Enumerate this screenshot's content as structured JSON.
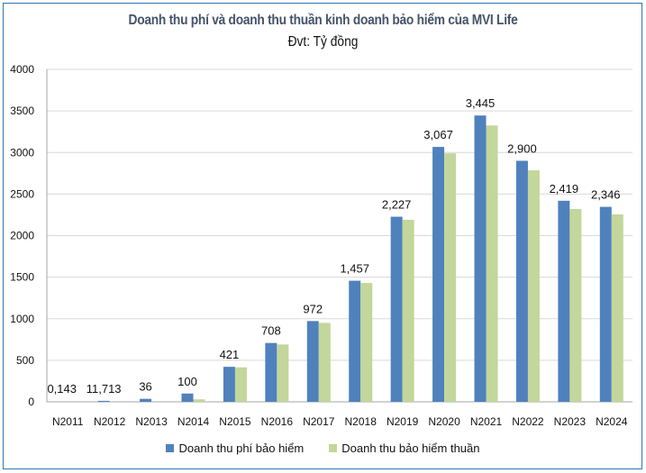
{
  "chart_data": {
    "type": "bar",
    "title": "Doanh thu phí và doanh thu thuần kinh doanh bảo hiểm của MVI Life",
    "subtitle": "Đvt: Tỷ đồng",
    "xlabel": "",
    "ylabel": "",
    "ylim": [
      0,
      4000
    ],
    "yticks": [
      0,
      500,
      1000,
      1500,
      2000,
      2500,
      3000,
      3500,
      4000
    ],
    "grid": true,
    "legend_position": "bottom",
    "categories": [
      "N2011",
      "N2012",
      "N2013",
      "N2014",
      "N2015",
      "N2016",
      "N2017",
      "N2018",
      "N2019",
      "N2020",
      "N2021",
      "N2022",
      "N2023",
      "N2024"
    ],
    "series": [
      {
        "name": "Doanh thu  phí bảo hiểm",
        "color": "#4f81bd",
        "values": [
          0.143,
          11.713,
          36,
          100,
          421,
          708,
          972,
          1457,
          2227,
          3067,
          3445,
          2900,
          2419,
          2346
        ],
        "labels": [
          "0,143",
          "11,713",
          "36",
          "100",
          "421",
          "708",
          "972",
          "1,457",
          "2,227",
          "3,067",
          "3,445",
          "2,900",
          "2,419",
          "2,346"
        ]
      },
      {
        "name": "Doanh thu  bảo hiểm thuần",
        "color": "#c3d69b",
        "values": [
          0,
          0,
          0,
          30,
          415,
          690,
          950,
          1430,
          2190,
          2990,
          3325,
          2785,
          2320,
          2255
        ]
      }
    ]
  }
}
